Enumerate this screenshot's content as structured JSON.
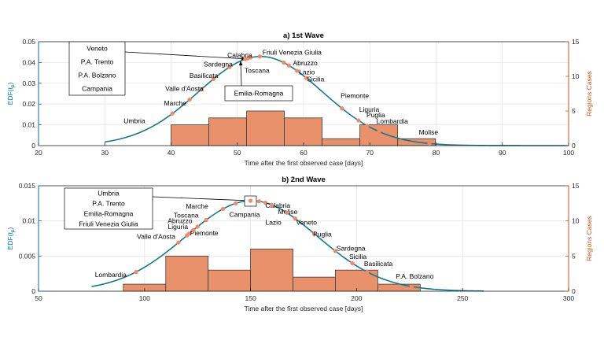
{
  "colors": {
    "curve": "#127A8C",
    "bar_fill": "#E8916A",
    "bar_edge": "#3C3C3C",
    "point": "#F08A68",
    "left_axis": "#0072BD",
    "right_axis": "#D95319",
    "grid": "#E6E6E6"
  },
  "chart_data": [
    {
      "type": "bar",
      "title": "a) 1st Wave",
      "xlabel": "Time after the first observed case [days]",
      "ylabel_left": "EDF(t_p)",
      "ylabel_right": "Regions Cases",
      "xlim": [
        20,
        100
      ],
      "ylim_left": [
        0,
        0.05
      ],
      "ylim_right": [
        0,
        15
      ],
      "xticks": [
        20,
        30,
        40,
        50,
        60,
        70,
        80,
        90,
        100
      ],
      "yticks_left": [
        {
          "value": 0,
          "label": "0"
        },
        {
          "value": 0.01,
          "label": "0.01"
        },
        {
          "value": 0.02,
          "label": "0.02"
        },
        {
          "value": 0.03,
          "label": "0.03"
        },
        {
          "value": 0.04,
          "label": "0.04"
        },
        {
          "value": 0.05,
          "label": "0.05"
        }
      ],
      "yticks_right": [
        0,
        5,
        10,
        15
      ],
      "grid": true,
      "curve": {
        "mu": 53.5,
        "sigma": 9.3,
        "x_range": [
          30,
          100
        ]
      },
      "histogram": [
        {
          "x0": 40,
          "x1": 45.7,
          "count": 3
        },
        {
          "x0": 45.7,
          "x1": 51.4,
          "count": 4
        },
        {
          "x0": 51.4,
          "x1": 57.1,
          "count": 5
        },
        {
          "x0": 57.1,
          "x1": 62.8,
          "count": 4
        },
        {
          "x0": 62.8,
          "x1": 68.5,
          "count": 1
        },
        {
          "x0": 68.5,
          "x1": 74.2,
          "count": 3
        },
        {
          "x0": 74.2,
          "x1": 79.9,
          "count": 1
        }
      ],
      "points": [
        {
          "name": "Umbria",
          "x": 40.2,
          "lx": 36.1,
          "ly": 0.012,
          "anchor": "end"
        },
        {
          "name": "Marche",
          "x": 42.8,
          "lx": 42.3,
          "ly": 0.0205,
          "anchor": "end"
        },
        {
          "name": "Valle d'Aosta",
          "x": 44.6,
          "lx": 44.9,
          "ly": 0.0275,
          "anchor": "end"
        },
        {
          "name": "Basilicata",
          "x": 46.4,
          "lx": 47.1,
          "ly": 0.0338,
          "anchor": "end"
        },
        {
          "name": "Sardegna",
          "x": 48.8,
          "lx": 49.3,
          "ly": 0.0392,
          "anchor": "end"
        },
        {
          "name": "Calabria",
          "x": 51.6,
          "lx": 48.5,
          "ly": 0.0435,
          "anchor": "start"
        },
        {
          "name": "Friuli Venezia Giulia",
          "x": 53.4,
          "lx": 53.8,
          "ly": 0.0448,
          "anchor": "start"
        },
        {
          "name": "Abruzzo",
          "x": 57.8,
          "lx": 58.4,
          "ly": 0.0398,
          "anchor": "start"
        },
        {
          "name": "Toscana",
          "x": 57.0,
          "lx": 51.1,
          "ly": 0.0362,
          "anchor": "start"
        },
        {
          "name": "Lazio",
          "x": 59.0,
          "lx": 59.3,
          "ly": 0.0355,
          "anchor": "start"
        },
        {
          "name": "Sicilia",
          "x": 60.4,
          "lx": 60.5,
          "ly": 0.032,
          "anchor": "start"
        },
        {
          "name": "Piemonte",
          "x": 65.8,
          "lx": 65.6,
          "ly": 0.024,
          "anchor": "start"
        },
        {
          "name": "Liguria",
          "x": 68.3,
          "lx": 68.4,
          "ly": 0.0175,
          "anchor": "start"
        },
        {
          "name": "Puglia",
          "x": 69.6,
          "lx": 69.5,
          "ly": 0.0148,
          "anchor": "start"
        },
        {
          "name": "Lombardia",
          "x": 71.4,
          "lx": 71.0,
          "ly": 0.0118,
          "anchor": "start"
        },
        {
          "name": "Molise",
          "x": 79.0,
          "lx": 77.4,
          "ly": 0.0065,
          "anchor": "start"
        }
      ],
      "dot_only_x": [
        51.2,
        52.0
      ],
      "boxes": [
        {
          "lines": [
            "Veneto",
            "P.A. Trento",
            "P.A. Bolzano",
            "Campania"
          ],
          "px": [
            88,
            53,
            71,
            68
          ],
          "arrow_from": [
            159,
            66
          ],
          "arrow_to_x": 51.3
        },
        {
          "lines": [
            "Emilia-Romagna"
          ],
          "px": [
            286,
            109,
            86,
            19
          ],
          "arrow_from": [
            307,
            109
          ],
          "arrow_to_x": 50.5
        }
      ]
    },
    {
      "type": "bar",
      "title": "b) 2nd Wave",
      "xlabel": "Time after the first observed case [days]",
      "ylabel_left": "EDF(t_p)",
      "ylabel_right": "Regions Cases",
      "xlim": [
        50,
        300
      ],
      "ylim_left": [
        0,
        0.015
      ],
      "ylim_right": [
        0,
        15
      ],
      "xticks": [
        50,
        100,
        150,
        200,
        250,
        300
      ],
      "yticks_left": [
        {
          "value": 0,
          "label": "0"
        },
        {
          "value": 0.005,
          "label": "0.005"
        },
        {
          "value": 0.01,
          "label": "0.01"
        },
        {
          "value": 0.015,
          "label": "0.015"
        }
      ],
      "yticks_right": [
        0,
        5,
        10,
        15
      ],
      "grid": true,
      "curve": {
        "mu": 150.5,
        "sigma": 31,
        "x_range": [
          75,
          260
        ]
      },
      "histogram": [
        {
          "x0": 90,
          "x1": 110,
          "count": 1
        },
        {
          "x0": 110,
          "x1": 130,
          "count": 5
        },
        {
          "x0": 130,
          "x1": 150,
          "count": 3
        },
        {
          "x0": 150,
          "x1": 170,
          "count": 6
        },
        {
          "x0": 170,
          "x1": 190,
          "count": 2
        },
        {
          "x0": 190,
          "x1": 210,
          "count": 3
        },
        {
          "x0": 210,
          "x1": 230,
          "count": 1
        }
      ],
      "points": [
        {
          "name": "Lombardia",
          "x": 96,
          "lx": 91.5,
          "ly": 0.00235,
          "anchor": "end"
        },
        {
          "name": "Valle d'Aosta",
          "x": 116,
          "lx": 114.5,
          "ly": 0.0078,
          "anchor": "end"
        },
        {
          "name": "Liguria",
          "x": 120,
          "lx": 120.5,
          "ly": 0.0092,
          "anchor": "end"
        },
        {
          "name": "Piemonte",
          "x": 121,
          "lx": 121.5,
          "ly": 0.0083,
          "anchor": "start"
        },
        {
          "name": "Abruzzo",
          "x": 123,
          "lx": 122.5,
          "ly": 0.01,
          "anchor": "end"
        },
        {
          "name": "Toscana",
          "x": 125,
          "lx": 125.5,
          "ly": 0.0108,
          "anchor": "end"
        },
        {
          "name": "Marche",
          "x": 129,
          "lx": 130.0,
          "ly": 0.0121,
          "anchor": "end"
        },
        {
          "name": "Campania",
          "x": 137,
          "lx": 140.0,
          "ly": 0.0109,
          "anchor": "start"
        },
        {
          "name": "Calabria",
          "x": 157,
          "lx": 157.0,
          "ly": 0.0122,
          "anchor": "start"
        },
        {
          "name": "Molise",
          "x": 160,
          "lx": 163.0,
          "ly": 0.0113,
          "anchor": "start"
        },
        {
          "name": "Lazio",
          "x": 167,
          "lx": 157.0,
          "ly": 0.0098,
          "anchor": "start"
        },
        {
          "name": "Veneto",
          "x": 171,
          "lx": 171.5,
          "ly": 0.0098,
          "anchor": "start"
        },
        {
          "name": "Puglia",
          "x": 180,
          "lx": 179.5,
          "ly": 0.0081,
          "anchor": "start"
        },
        {
          "name": "Sardegna",
          "x": 190,
          "lx": 190.5,
          "ly": 0.0061,
          "anchor": "start"
        },
        {
          "name": "Sicilia",
          "x": 198,
          "lx": 196.5,
          "ly": 0.0049,
          "anchor": "start"
        },
        {
          "name": "Basilicata",
          "x": 205,
          "lx": 203.5,
          "ly": 0.0039,
          "anchor": "start"
        },
        {
          "name": "P.A. Bolzano",
          "x": 226,
          "lx": 218.5,
          "ly": 0.00215,
          "anchor": "start"
        }
      ],
      "dot_only_x": [
        143,
        150,
        154
      ],
      "boxes": [
        {
          "lines": [
            "Umbria",
            "P.A. Trento",
            "Emilia-Romagna",
            "Friuli Venezia Giulia"
          ],
          "px": [
            82,
            239,
            112,
            52
          ],
          "arrow_from": [
            194,
            250
          ],
          "arrow_to_x": 150
        },
        {
          "lines": [],
          "px": [
            311,
            249,
            15,
            13
          ],
          "arrow_from": null,
          "arrow_to_x": null
        }
      ]
    }
  ]
}
